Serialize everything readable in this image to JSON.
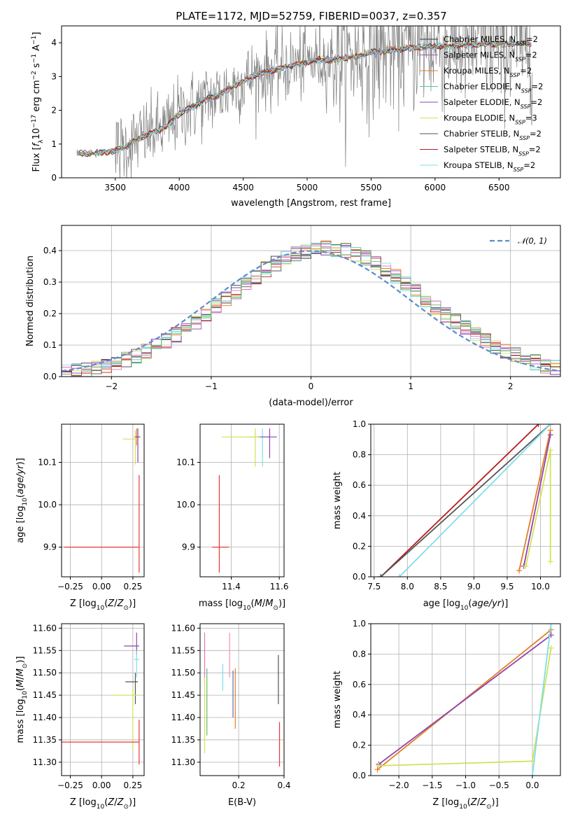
{
  "figure": {
    "title": "PLATE=1172, MJD=52759, FIBERID=0037, z=0.357"
  },
  "chart_data": [
    {
      "type": "line",
      "xlabel": "wavelength [Angstrom, rest frame]",
      "ylabel": "Flux [f_λ 10^-17 erg cm^-2 s^-1 A^-1]",
      "xlim": [
        3080,
        6980
      ],
      "ylim": [
        0,
        4.5
      ],
      "xticks": [
        3500,
        4000,
        4500,
        5000,
        5500,
        6000,
        6500
      ],
      "yticks": [
        0,
        1,
        2,
        3,
        4
      ],
      "legend_position": "top-right",
      "series": [
        {
          "name": "Chabrier MILES, N_SSP=2",
          "color": "#333333"
        },
        {
          "name": "Salpeter MILES, N_SSP=2",
          "color": "#9b59b6"
        },
        {
          "name": "Kroupa MILES, N_SSP=2",
          "color": "#e67e22"
        },
        {
          "name": "Chabrier ELODIE, N_SSP=2",
          "color": "#48c9b0"
        },
        {
          "name": "Salpeter ELODIE, N_SSP=2",
          "color": "#8e44ad"
        },
        {
          "name": "Kroupa ELODIE, N_SSP=3",
          "color": "#d4e157"
        },
        {
          "name": "Chabrier STELIB, N_SSP=2",
          "color": "#555555"
        },
        {
          "name": "Salpeter STELIB, N_SSP=2",
          "color": "#b71c1c"
        },
        {
          "name": "Kroupa STELIB, N_SSP=2",
          "color": "#80deea"
        }
      ],
      "model_continuum": [
        [
          3200,
          0.72
        ],
        [
          3300,
          0.72
        ],
        [
          3400,
          0.75
        ],
        [
          3500,
          0.8
        ],
        [
          3600,
          0.95
        ],
        [
          3700,
          1.2
        ],
        [
          3800,
          1.35
        ],
        [
          3900,
          1.5
        ],
        [
          4000,
          1.9
        ],
        [
          4100,
          2.1
        ],
        [
          4200,
          2.3
        ],
        [
          4300,
          2.45
        ],
        [
          4400,
          2.65
        ],
        [
          4500,
          2.85
        ],
        [
          4600,
          3.05
        ],
        [
          4700,
          3.15
        ],
        [
          4800,
          3.25
        ],
        [
          4900,
          3.35
        ],
        [
          5000,
          3.42
        ],
        [
          5100,
          3.5
        ],
        [
          5200,
          3.5
        ],
        [
          5300,
          3.55
        ],
        [
          5400,
          3.6
        ],
        [
          5500,
          3.72
        ],
        [
          5600,
          3.75
        ],
        [
          5700,
          3.8
        ],
        [
          5800,
          3.85
        ],
        [
          5900,
          3.88
        ],
        [
          6000,
          3.9
        ],
        [
          6100,
          3.9
        ],
        [
          6200,
          3.92
        ],
        [
          6300,
          3.95
        ],
        [
          6400,
          3.97
        ],
        [
          6500,
          3.95
        ],
        [
          6600,
          3.98
        ],
        [
          6700,
          3.98
        ],
        [
          6750,
          3.97
        ]
      ],
      "data_color": "#808080"
    },
    {
      "type": "line",
      "xlabel": "(data-model)/error",
      "ylabel": "Normed distribution",
      "xlim": [
        -2.5,
        2.5
      ],
      "ylim": [
        0,
        0.48
      ],
      "xticks": [
        -2,
        -1,
        0,
        1,
        2
      ],
      "yticks": [
        0.0,
        0.1,
        0.2,
        0.3,
        0.4
      ],
      "grid": true,
      "legend_position": "top-right",
      "reference": {
        "name": "𝒩(0, 1)",
        "color": "#5b8bd0",
        "style": "dashed"
      }
    },
    {
      "type": "scatter",
      "xlabel": "Z [log10(Z/Z⊙)]",
      "ylabel": "age [log10(age/yr)]",
      "xlim": [
        -0.32,
        0.34
      ],
      "ylim": [
        9.83,
        10.19
      ],
      "xticks": [
        -0.25,
        0.0,
        0.25
      ],
      "xtick_labels": [
        "−0.25",
        "0.00",
        "0.25"
      ],
      "yticks": [
        9.9,
        10.0,
        10.1
      ],
      "grid": true,
      "points": [
        {
          "x": 0.28,
          "y": 10.16,
          "xerr": [
            0.02,
            0.02
          ],
          "yerr": [
            0.02,
            0.02
          ],
          "color": "#e67e22"
        },
        {
          "x": 0.27,
          "y": 10.155,
          "xerr": [
            0.1,
            0.02
          ],
          "yerr": [
            0.06,
            0.02
          ],
          "color": "#d4e157"
        },
        {
          "x": 0.29,
          "y": 10.16,
          "xerr": [
            0.02,
            0.02
          ],
          "yerr": [
            0.06,
            0.02
          ],
          "color": "#8e44ad"
        },
        {
          "x": 0.3,
          "y": 9.9,
          "xerr": [
            0.6,
            0.0
          ],
          "yerr": [
            0.06,
            0.17
          ],
          "color": "#e53935"
        }
      ]
    },
    {
      "type": "scatter",
      "xlabel": "mass [log10(M/M⊙)]",
      "xlim": [
        11.27,
        11.62
      ],
      "ylim": [
        9.83,
        10.19
      ],
      "xticks": [
        11.4,
        11.6
      ],
      "yticks": [
        9.9,
        10.0,
        10.1
      ],
      "grid": true,
      "points": [
        {
          "x": 11.53,
          "y": 10.16,
          "xerr": [
            0.06,
            0.03
          ],
          "yerr": [
            0.07,
            0.02
          ],
          "color": "#80deea"
        },
        {
          "x": 11.56,
          "y": 10.16,
          "xerr": [
            0.05,
            0.03
          ],
          "yerr": [
            0.05,
            0.02
          ],
          "color": "#8e44ad"
        },
        {
          "x": 11.5,
          "y": 10.16,
          "xerr": [
            0.14,
            0.02
          ],
          "yerr": [
            0.07,
            0.02
          ],
          "color": "#d4e157"
        },
        {
          "x": 11.35,
          "y": 9.9,
          "xerr": [
            0.03,
            0.04
          ],
          "yerr": [
            0.06,
            0.17
          ],
          "color": "#e53935"
        }
      ]
    },
    {
      "type": "line",
      "xlabel": "age [log10(age/yr)]",
      "ylabel": "mass weight",
      "xlim": [
        7.45,
        10.3
      ],
      "ylim": [
        0,
        1
      ],
      "xticks": [
        7.5,
        8.0,
        8.5,
        9.0,
        9.5,
        10.0
      ],
      "yticks": [
        0.0,
        0.2,
        0.4,
        0.6,
        0.8,
        1.0
      ],
      "grid": true,
      "series": [
        {
          "name": "Salpeter STELIB",
          "color": "#b71c1c",
          "x": [
            7.6,
            9.97
          ],
          "y": [
            0.0,
            1.0
          ]
        },
        {
          "name": "Chabrier STELIB",
          "color": "#555555",
          "x": [
            7.6,
            10.15
          ],
          "y": [
            0.0,
            1.0
          ]
        },
        {
          "name": "Kroupa STELIB",
          "color": "#80deea",
          "x": [
            7.88,
            10.15
          ],
          "y": [
            0.0,
            1.0
          ]
        },
        {
          "name": "Kroupa MILES",
          "color": "#e67e22",
          "x": [
            9.68,
            10.15
          ],
          "y": [
            0.04,
            0.96
          ]
        },
        {
          "name": "Salpeter ELODIE",
          "color": "#8e44ad",
          "x": [
            9.75,
            10.15
          ],
          "y": [
            0.07,
            0.93
          ]
        },
        {
          "name": "Kroupa ELODIE",
          "color": "#d4e157",
          "x": [
            9.78,
            10.15,
            10.15
          ],
          "y": [
            0.07,
            0.83,
            0.1
          ]
        }
      ]
    },
    {
      "type": "scatter",
      "xlabel": "Z [log10(Z/Z⊙)]",
      "ylabel": "mass [log10(M/M⊙)]",
      "xlim": [
        -0.32,
        0.34
      ],
      "ylim": [
        11.27,
        11.61
      ],
      "xticks": [
        -0.25,
        0.0,
        0.25
      ],
      "xtick_labels": [
        "−0.25",
        "0.00",
        "0.25"
      ],
      "yticks": [
        11.3,
        11.35,
        11.4,
        11.45,
        11.5,
        11.55,
        11.6
      ],
      "grid": true,
      "points": [
        {
          "x": 0.28,
          "y": 11.56,
          "xerr": [
            0.1,
            0.02
          ],
          "yerr": [
            0.02,
            0.03
          ],
          "color": "#8e44ad"
        },
        {
          "x": 0.28,
          "y": 11.53,
          "xerr": [
            0.02,
            0.02
          ],
          "yerr": [
            0.04,
            0.02
          ],
          "color": "#80deea"
        },
        {
          "x": 0.27,
          "y": 11.48,
          "xerr": [
            0.08,
            0.02
          ],
          "yerr": [
            0.05,
            0.02
          ],
          "color": "#555555"
        },
        {
          "x": 0.25,
          "y": 11.45,
          "xerr": [
            0.16,
            0.04
          ],
          "yerr": [
            0.12,
            0.02
          ],
          "color": "#d4e157"
        },
        {
          "x": 0.3,
          "y": 11.345,
          "xerr": [
            0.62,
            0.0
          ],
          "yerr": [
            0.05,
            0.05
          ],
          "color": "#e53935"
        }
      ]
    },
    {
      "type": "scatter",
      "xlabel": "E(B-V)",
      "xlim": [
        0.03,
        0.4
      ],
      "ylim": [
        11.27,
        11.61
      ],
      "xticks": [
        0.2,
        0.4
      ],
      "yticks": [
        11.3,
        11.35,
        11.4,
        11.45,
        11.5,
        11.55,
        11.6
      ],
      "grid": true,
      "points": [
        {
          "x": 0.05,
          "y": 11.53,
          "yerr": [
            0.06,
            0.06
          ],
          "color": "#e573b7"
        },
        {
          "x": 0.05,
          "y": 11.42,
          "yerr": [
            0.1,
            0.07
          ],
          "color": "#d4e157"
        },
        {
          "x": 0.06,
          "y": 11.44,
          "yerr": [
            0.08,
            0.07
          ],
          "color": "#66bb6a"
        },
        {
          "x": 0.13,
          "y": 11.49,
          "yerr": [
            0.03,
            0.03
          ],
          "color": "#80deea"
        },
        {
          "x": 0.16,
          "y": 11.53,
          "yerr": [
            0.04,
            0.06
          ],
          "color": "#f48fb1"
        },
        {
          "x": 0.175,
          "y": 11.455,
          "yerr": [
            0.055,
            0.05
          ],
          "color": "#5c6bc0"
        },
        {
          "x": 0.185,
          "y": 11.44,
          "yerr": [
            0.065,
            0.07
          ],
          "color": "#e67e22"
        },
        {
          "x": 0.375,
          "y": 11.485,
          "yerr": [
            0.055,
            0.055
          ],
          "color": "#555555"
        },
        {
          "x": 0.38,
          "y": 11.34,
          "yerr": [
            0.05,
            0.05
          ],
          "color": "#e53935"
        }
      ]
    },
    {
      "type": "line",
      "xlabel": "Z [log10(Z/Z⊙)]",
      "ylabel": "mass weight",
      "xlim": [
        -2.42,
        0.42
      ],
      "ylim": [
        0,
        1
      ],
      "xticks": [
        -2.0,
        -1.5,
        -1.0,
        -0.5,
        0.0
      ],
      "xtick_labels": [
        "−2.0",
        "−1.5",
        "−1.0",
        "−0.5",
        "0.0"
      ],
      "yticks": [
        0.0,
        0.2,
        0.4,
        0.6,
        0.8,
        1.0
      ],
      "grid": true,
      "series": [
        {
          "name": "Kroupa MILES",
          "color": "#e67e22",
          "x": [
            -2.32,
            0.28
          ],
          "y": [
            0.04,
            0.96
          ]
        },
        {
          "name": "Salpeter ELODIE",
          "color": "#8e44ad",
          "x": [
            -2.3,
            0.28
          ],
          "y": [
            0.075,
            0.925
          ]
        },
        {
          "name": "Kroupa ELODIE",
          "color": "#d4e157",
          "x": [
            -2.3,
            0.0,
            0.28
          ],
          "y": [
            0.065,
            0.095,
            0.84
          ]
        },
        {
          "name": "Kroupa STELIB",
          "color": "#80deea",
          "x": [
            0.0,
            0.28
          ],
          "y": [
            0.0,
            1.0
          ]
        }
      ]
    }
  ]
}
